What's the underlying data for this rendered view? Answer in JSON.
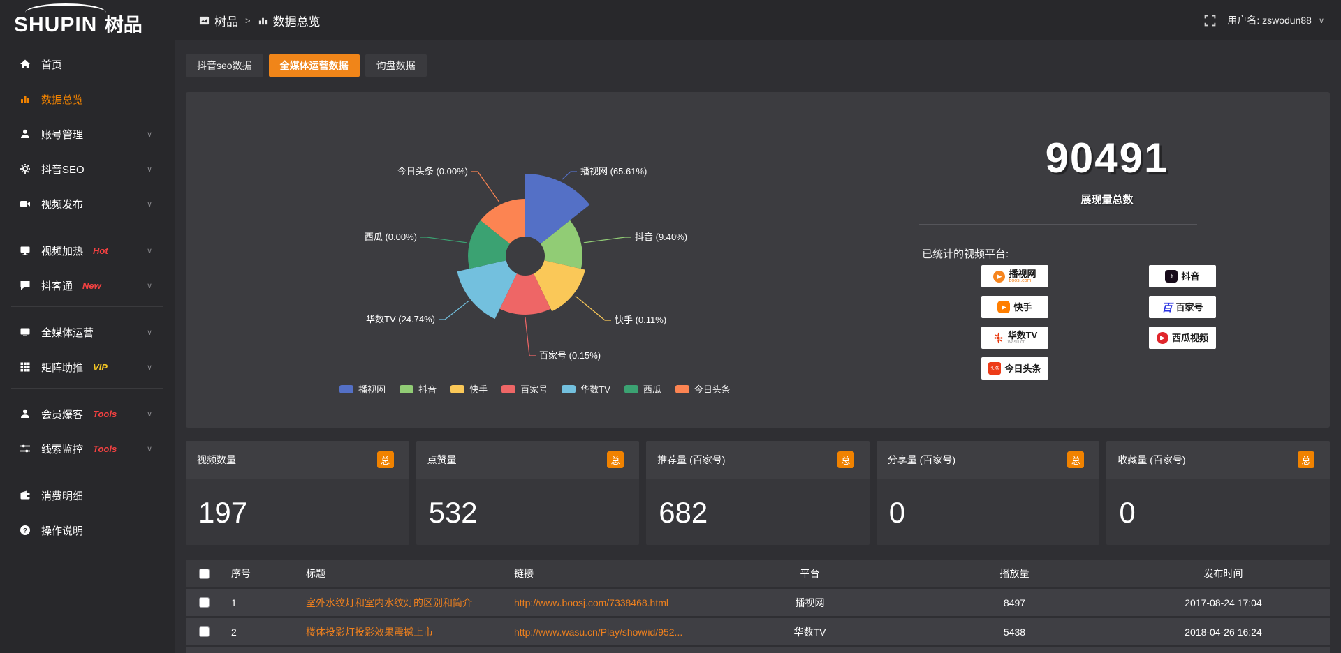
{
  "colors": {
    "accent": "#F08519",
    "sidebar_active": "#F08200",
    "link_orange": "#EE801E",
    "hot_red": "#F34141",
    "vip_yellow": "#F3C623"
  },
  "topbar": {
    "logo_en": "SHUPIN",
    "logo_cn": "树品",
    "breadcrumb_home": "树品",
    "breadcrumb_sep": ">",
    "breadcrumb_current": "数据总览",
    "username_label": "用户名:",
    "username_value": "zswodun88",
    "user_caret": "∨"
  },
  "sidebar": {
    "items": [
      {
        "id": "home",
        "icon": "home-icon",
        "label": "首页"
      },
      {
        "id": "data-overview",
        "icon": "bar-chart-icon",
        "label": "数据总览",
        "active": true
      },
      {
        "id": "account-manage",
        "icon": "user-icon",
        "label": "账号管理",
        "chevron": true
      },
      {
        "id": "douyin-seo",
        "icon": "gear-icon",
        "label": "抖音SEO",
        "chevron": true
      },
      {
        "id": "video-publish",
        "icon": "video-icon",
        "label": "视频发布",
        "chevron": true
      },
      {
        "divider": true
      },
      {
        "id": "video-heat",
        "icon": "monitor-icon",
        "label": "视频加热",
        "badge": "Hot",
        "badge_color": "#F34141",
        "chevron": true
      },
      {
        "id": "douketong",
        "icon": "chat-icon",
        "label": "抖客通",
        "badge": "New",
        "badge_color": "#F34141",
        "chevron": true
      },
      {
        "divider": true
      },
      {
        "id": "media-operation",
        "icon": "display-icon",
        "label": "全媒体运营",
        "chevron": true
      },
      {
        "id": "matrix-boost",
        "icon": "grid-icon",
        "label": "矩阵助推",
        "badge": "VIP",
        "badge_color": "#F3C623",
        "chevron": true
      },
      {
        "divider": true
      },
      {
        "id": "member-baoke",
        "icon": "user-star-icon",
        "label": "会员爆客",
        "badge": "Tools",
        "badge_color": "#F34141",
        "chevron": true
      },
      {
        "id": "clue-monitor",
        "icon": "sliders-icon",
        "label": "线索监控",
        "badge": "Tools",
        "badge_color": "#F34141",
        "chevron": true
      },
      {
        "divider": true
      },
      {
        "id": "expense-detail",
        "icon": "wallet-icon",
        "label": "消费明细"
      },
      {
        "id": "help",
        "icon": "question-icon",
        "label": "操作说明"
      }
    ]
  },
  "tabs": [
    {
      "label": "抖音seo数据",
      "active": false
    },
    {
      "label": "全媒体运营数据",
      "active": true
    },
    {
      "label": "询盘数据",
      "active": false
    }
  ],
  "chart_data": {
    "type": "pie",
    "variant": "nightingale-rose",
    "legend_position": "bottom",
    "label_format": "{name} ({percent}%)",
    "series": [
      {
        "name": "播视网",
        "value_percent": 65.61,
        "color": "#5470c6"
      },
      {
        "name": "抖音",
        "value_percent": 9.4,
        "color": "#91cc75"
      },
      {
        "name": "快手",
        "value_percent": 0.11,
        "color": "#fac858"
      },
      {
        "name": "百家号",
        "value_percent": 0.15,
        "color": "#ee6666"
      },
      {
        "name": "华数TV",
        "value_percent": 24.74,
        "color": "#73c0de"
      },
      {
        "name": "西瓜",
        "value_percent": 0.0,
        "color": "#3ba272"
      },
      {
        "name": "今日头条",
        "value_percent": 0.0,
        "color": "#fc8452"
      }
    ]
  },
  "summary": {
    "total_value": "90491",
    "total_label": "展现量总数",
    "platforms_title": "已统计的视频平台:",
    "platforms": [
      {
        "name": "播视网",
        "sub": "boosj.com",
        "icon": "boosj-logo",
        "col": 0
      },
      {
        "name": "快手",
        "icon": "kuaishou-logo",
        "col": 0
      },
      {
        "name": "华数TV",
        "sub": "wasu.cn",
        "icon": "wasu-logo",
        "col": 0
      },
      {
        "name": "今日头条",
        "icon": "toutiao-logo",
        "col": 0
      },
      {
        "name": "抖音",
        "icon": "douyin-logo",
        "col": 1
      },
      {
        "name": "百家号",
        "icon": "baijiahao-logo",
        "col": 1
      },
      {
        "name": "西瓜视频",
        "icon": "xigua-logo",
        "col": 1
      }
    ]
  },
  "stat_cards": [
    {
      "label": "视频数量",
      "badge": "总",
      "value": "197"
    },
    {
      "label": "点赞量",
      "badge": "总",
      "value": "532"
    },
    {
      "label": "推荐量 (百家号)",
      "badge": "总",
      "value": "682"
    },
    {
      "label": "分享量 (百家号)",
      "badge": "总",
      "value": "0"
    },
    {
      "label": "收藏量 (百家号)",
      "badge": "总",
      "value": "0"
    }
  ],
  "table": {
    "headers": {
      "index": "序号",
      "title": "标题",
      "link": "链接",
      "platform": "平台",
      "plays": "播放量",
      "time": "发布时间"
    },
    "rows": [
      {
        "index": "1",
        "title": "室外水纹灯和室内水纹灯的区别和简介",
        "link": "http://www.boosj.com/7338468.html",
        "platform": "播视网",
        "plays": "8497",
        "time": "2017-08-24 17:04"
      },
      {
        "index": "2",
        "title": "楼体投影灯投影效果震撼上市",
        "link": "http://www.wasu.cn/Play/show/id/952...",
        "platform": "华数TV",
        "plays": "5438",
        "time": "2018-04-26 16:24"
      }
    ]
  }
}
